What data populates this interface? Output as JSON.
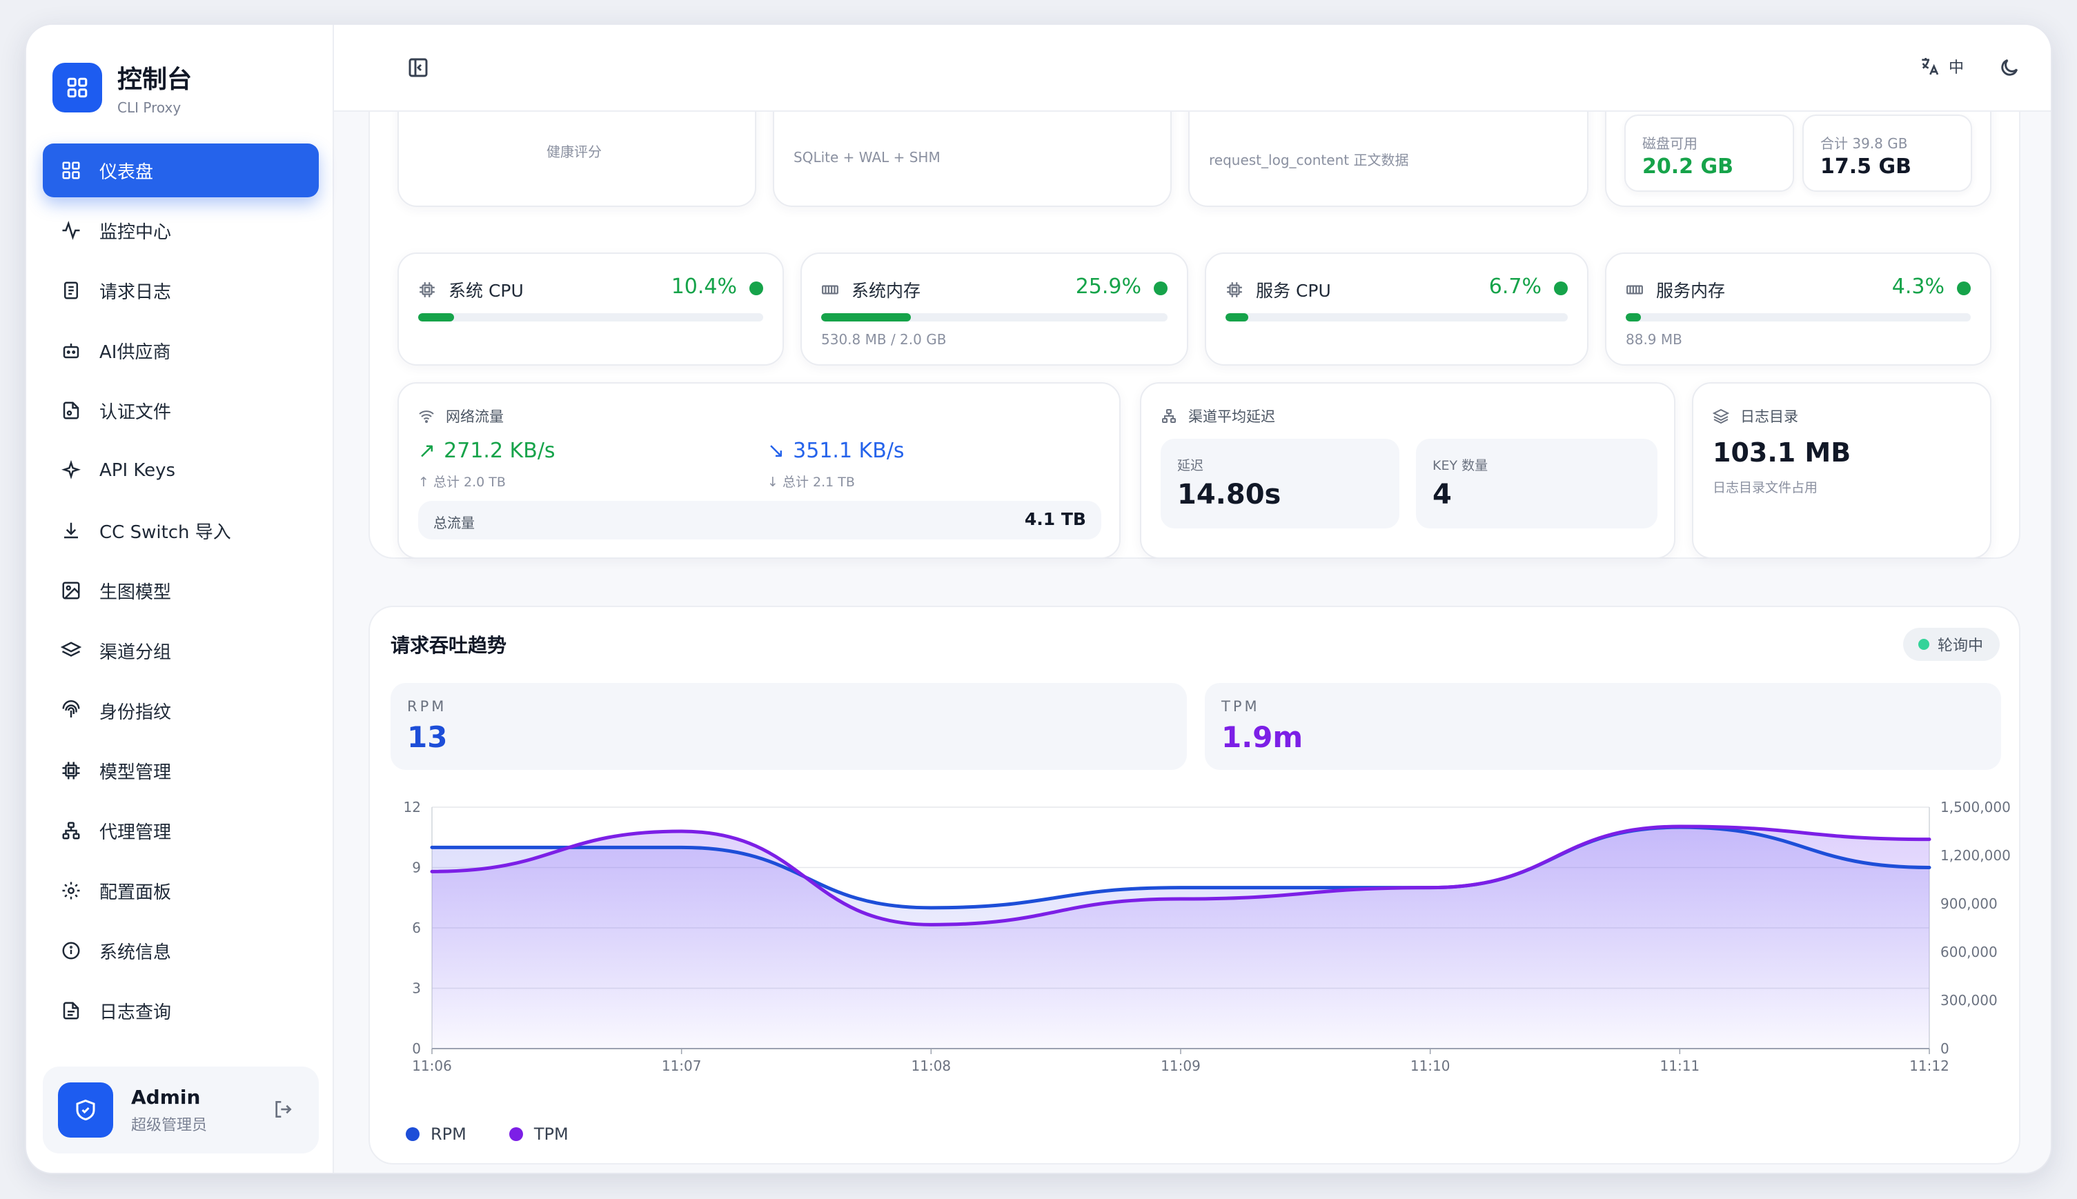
{
  "brand": {
    "title": "控制台",
    "subtitle": "CLI Proxy",
    "icon": "grid-icon",
    "color": "#1d5cf0"
  },
  "sidebar": {
    "items": [
      {
        "label": "仪表盘",
        "icon": "dashboard-icon",
        "active": true
      },
      {
        "label": "监控中心",
        "icon": "activity-icon"
      },
      {
        "label": "请求日志",
        "icon": "log-icon"
      },
      {
        "label": "AI供应商",
        "icon": "bot-icon"
      },
      {
        "label": "认证文件",
        "icon": "file-key-icon"
      },
      {
        "label": "API Keys",
        "icon": "sparkle-icon"
      },
      {
        "label": "CC Switch 导入",
        "icon": "download-icon"
      },
      {
        "label": "生图模型",
        "icon": "image-icon"
      },
      {
        "label": "渠道分组",
        "icon": "layers-icon"
      },
      {
        "label": "身份指纹",
        "icon": "fingerprint-icon"
      },
      {
        "label": "模型管理",
        "icon": "cpu-icon"
      },
      {
        "label": "代理管理",
        "icon": "network-icon"
      },
      {
        "label": "配置面板",
        "icon": "gear-icon"
      },
      {
        "label": "系统信息",
        "icon": "info-icon"
      },
      {
        "label": "日志查询",
        "icon": "file-text-icon"
      }
    ],
    "accent": "#2563eb"
  },
  "user": {
    "name": "Admin",
    "role": "超级管理员"
  },
  "header": {
    "language": "中"
  },
  "top_cards": {
    "health_sub": "健康评分",
    "db_sub": "SQLite + WAL + SHM",
    "log_sub": "request_log_content 正文数据",
    "disk": {
      "free_label": "磁盘可用",
      "free_value": "20.2 GB",
      "total_label": "合计 39.8 GB",
      "total_value": "17.5 GB"
    }
  },
  "metrics": [
    {
      "label": "系统 CPU",
      "value": "10.4%",
      "percent": 10.4,
      "sub": ""
    },
    {
      "label": "系统内存",
      "value": "25.9%",
      "percent": 25.9,
      "sub": "530.8 MB / 2.0 GB"
    },
    {
      "label": "服务 CPU",
      "value": "6.7%",
      "percent": 6.7,
      "sub": ""
    },
    {
      "label": "服务内存",
      "value": "4.3%",
      "percent": 4.3,
      "sub": "88.9 MB"
    }
  ],
  "network": {
    "title": "网络流量",
    "up": "271.2 KB/s",
    "up_total": "总计 2.0 TB",
    "down": "351.1 KB/s",
    "down_total": "总计 2.1 TB",
    "total_label": "总流量",
    "total_value": "4.1 TB"
  },
  "latency": {
    "title": "渠道平均延迟",
    "delay_label": "延迟",
    "delay_value": "14.80s",
    "key_label": "KEY 数量",
    "key_value": "4"
  },
  "logdir": {
    "title": "日志目录",
    "value": "103.1 MB",
    "sub": "日志目录文件占用"
  },
  "throughput": {
    "title": "请求吞吐趋势",
    "status": "轮询中",
    "rpm_label": "RPM",
    "rpm_value": "13",
    "tpm_label": "TPM",
    "tpm_value": "1.9m"
  },
  "chart_data": {
    "type": "area",
    "x": [
      "11:06",
      "11:07",
      "11:08",
      "11:09",
      "11:10",
      "11:11",
      "11:12"
    ],
    "series": [
      {
        "name": "RPM",
        "axis": "left",
        "color": "#1d4ed8",
        "values": [
          10,
          10,
          7,
          8,
          8,
          11,
          9
        ]
      },
      {
        "name": "TPM",
        "axis": "right",
        "color": "#7c1fe6",
        "values": [
          1100000,
          1350000,
          770000,
          930000,
          1000000,
          1380000,
          1300000
        ]
      }
    ],
    "y_left": {
      "min": 0,
      "max": 12,
      "ticks": [
        0,
        3,
        6,
        9,
        12
      ]
    },
    "y_right": {
      "min": 0,
      "max": 1500000,
      "ticks": [
        "0",
        "300,000",
        "600,000",
        "900,000",
        "1,200,000",
        "1,500,000"
      ]
    },
    "grid": true,
    "legend": "bottom-left"
  }
}
